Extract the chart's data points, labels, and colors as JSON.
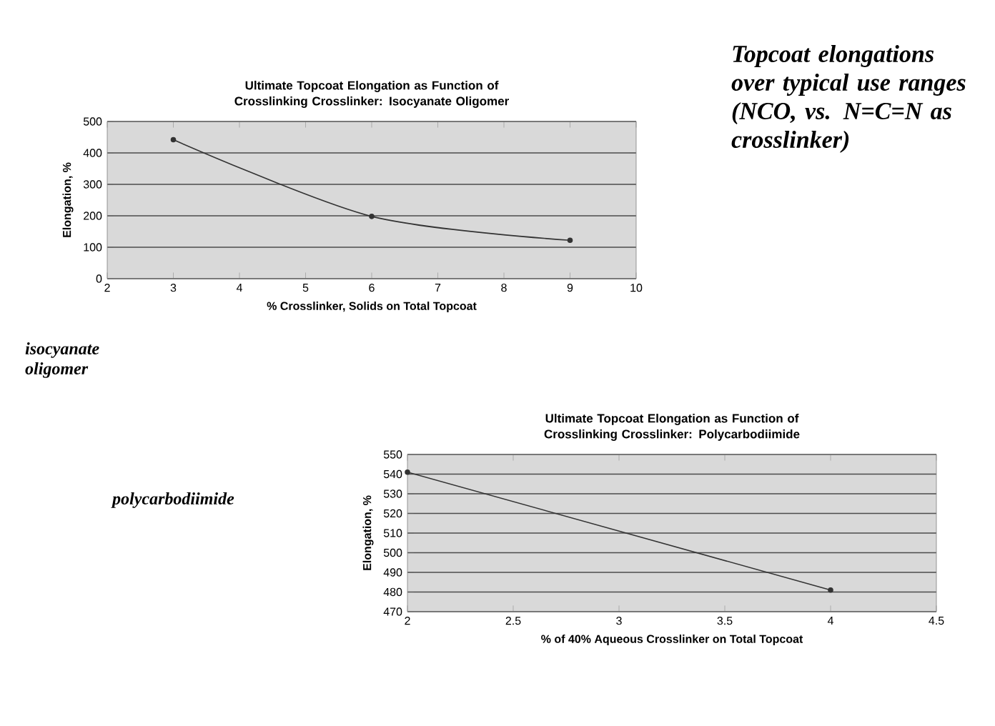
{
  "chart_data": [
    {
      "type": "line",
      "title": "Ultimate Topcoat Elongation as Function of Crosslinking Crosslinker: Isocyanate Oligomer",
      "xlabel": "% Crosslinker, Solids on Total Topcoat",
      "ylabel": "Elongation, %",
      "x": [
        3,
        6,
        9
      ],
      "values": [
        442,
        198,
        122
      ],
      "color": "#333333",
      "marker": "circle",
      "grid": "y",
      "xlim": [
        2,
        10
      ],
      "xticks": [
        2,
        3,
        4,
        5,
        6,
        7,
        8,
        9,
        10
      ],
      "ylim": [
        0,
        500
      ],
      "yticks": [
        0,
        100,
        200,
        300,
        400,
        500
      ],
      "annotations": [
        "Topcoat elongations over typical use ranges (NCO, vs. N=C=N as crosslinker)",
        "isocyanate oligomer"
      ]
    },
    {
      "type": "line",
      "title": "Ultimate Topcoat Elongation as Function of Crosslinking Crosslinker: Polycarbodiimide",
      "xlabel": "% of 40% Aqueous Crosslinker on Total Topcoat",
      "ylabel": "Elongation, %",
      "x": [
        2,
        4
      ],
      "values": [
        541,
        481
      ],
      "color": "#333333",
      "marker": "circle",
      "grid": "y",
      "xlim": [
        2,
        4.5
      ],
      "xticks": [
        2,
        2.5,
        3,
        3.5,
        4,
        4.5
      ],
      "ylim": [
        470,
        550
      ],
      "yticks": [
        470,
        480,
        490,
        500,
        510,
        520,
        530,
        540,
        550
      ],
      "annotations": [
        "polycarbodiimide"
      ]
    }
  ]
}
